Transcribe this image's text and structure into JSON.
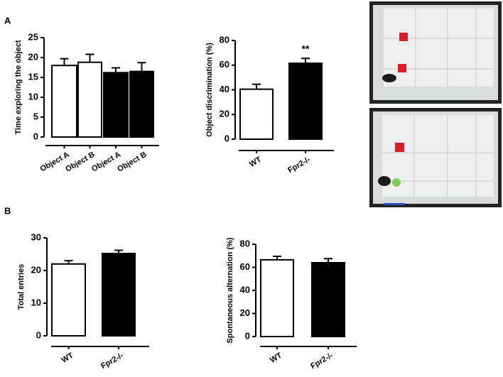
{
  "panel_labels": [
    "A",
    "B"
  ],
  "chart_data": [
    {
      "type": "bar",
      "ylabel": "Time exploring the object",
      "categories": [
        "Object A",
        "Object B",
        "Object A",
        "Object B"
      ],
      "values": [
        18,
        18.8,
        16.2,
        16.5
      ],
      "errors": [
        1.7,
        2,
        1.2,
        2.2
      ],
      "colors": [
        "#ffffff",
        "#ffffff",
        "#000000",
        "#000000"
      ],
      "ylim": [
        0,
        25
      ],
      "yticks": [
        0,
        5,
        10,
        15,
        20,
        25
      ]
    },
    {
      "type": "bar",
      "ylabel": "Object discrimination (%)",
      "categories": [
        "WT",
        "Fpr2-/-"
      ],
      "values": [
        40.5,
        61.5
      ],
      "errors": [
        4,
        4
      ],
      "colors": [
        "#ffffff",
        "#000000"
      ],
      "ylim": [
        0,
        80
      ],
      "yticks": [
        0,
        20,
        40,
        60,
        80
      ],
      "annotation": "**"
    },
    {
      "type": "bar",
      "ylabel": "Total entries",
      "categories": [
        "WT",
        "Fpr2-/-"
      ],
      "values": [
        22,
        25.2
      ],
      "errors": [
        1,
        1
      ],
      "colors": [
        "#ffffff",
        "#000000"
      ],
      "ylim": [
        0,
        30
      ],
      "yticks": [
        0,
        10,
        20,
        30
      ]
    },
    {
      "type": "bar",
      "ylabel": "Spontaneous alternation (%)",
      "categories": [
        "WT",
        "Fpr2-/-"
      ],
      "values": [
        66.5,
        64
      ],
      "errors": [
        3,
        3.5
      ],
      "colors": [
        "#ffffff",
        "#000000"
      ],
      "ylim": [
        0,
        80
      ],
      "yticks": [
        0,
        20,
        40,
        60,
        80
      ]
    }
  ]
}
